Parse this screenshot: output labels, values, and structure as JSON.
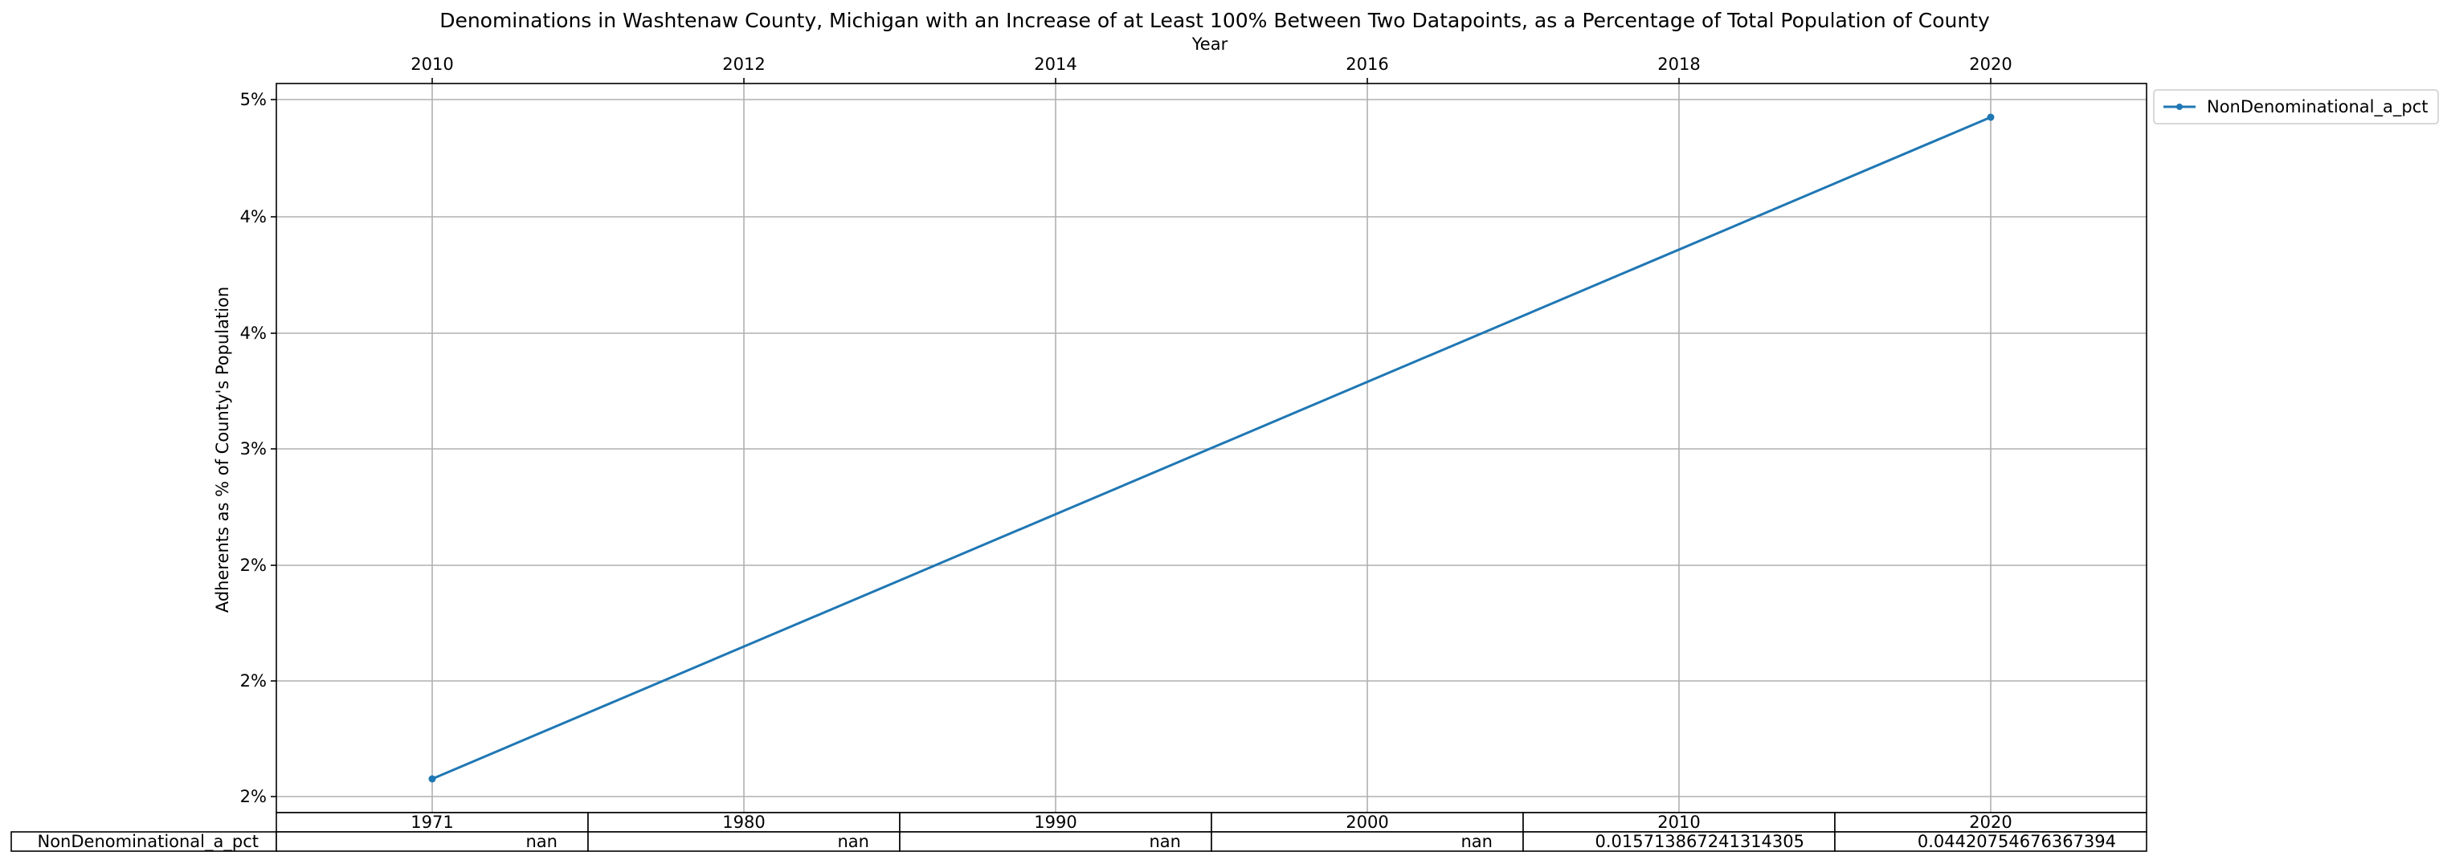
{
  "chart_data": {
    "type": "line",
    "title": "Denominations in Washtenaw County, Michigan with an Increase of at Least 100% Between Two Datapoints, as a Percentage of Total Population of County",
    "xlabel": "Year",
    "ylabel": "Adherents as % of County's Population",
    "x_ticks": [
      "2010",
      "2012",
      "2014",
      "2016",
      "2018",
      "2020"
    ],
    "y_ticks": [
      "2%",
      "2%",
      "2%",
      "3%",
      "4%",
      "4%",
      "5%"
    ],
    "xlim": [
      2009,
      2021
    ],
    "grid": true,
    "legend_position": "outside top-right",
    "series": [
      {
        "name": "NonDenominational_a_pct",
        "color": "#1f77b4",
        "x": [
          2010,
          2020
        ],
        "y": [
          0.01571,
          0.04421
        ]
      }
    ],
    "table": {
      "columns": [
        "1971",
        "1980",
        "1990",
        "2000",
        "2010",
        "2020"
      ],
      "rows": [
        {
          "label": "NonDenominational_a_pct",
          "values": [
            "nan",
            "nan",
            "nan",
            "nan",
            "0.015713867241314305",
            "0.04420754676367394"
          ]
        }
      ]
    }
  }
}
